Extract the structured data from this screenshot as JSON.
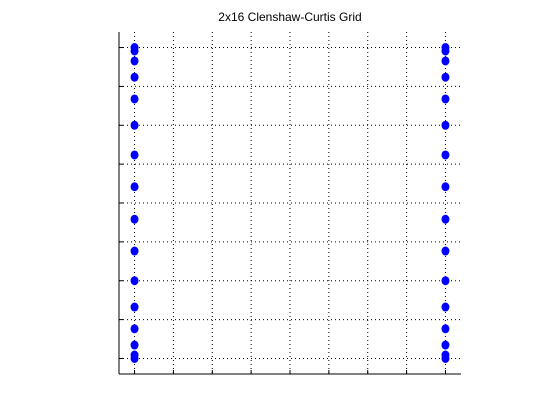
{
  "chart_data": {
    "type": "scatter",
    "title": "2x16 Clenshaw-Curtis Grid",
    "xlabel": "",
    "ylabel": "",
    "xlim": [
      -1.1,
      1.1
    ],
    "ylim": [
      -1.1,
      1.1
    ],
    "x_ticks": [
      -1,
      -0.75,
      -0.5,
      -0.25,
      0,
      0.25,
      0.5,
      0.75,
      1
    ],
    "y_ticks": [
      -1,
      -0.75,
      -0.5,
      -0.25,
      0,
      0.25,
      0.5,
      0.75,
      1
    ],
    "tick_labels_shown": false,
    "grid": true,
    "marker_color": "#0000ff",
    "series": [
      {
        "x": [
          -1,
          -1,
          -1,
          -1,
          -1,
          -1,
          -1,
          -1,
          -1,
          -1,
          -1,
          -1,
          -1,
          -1,
          -1,
          -1,
          1,
          1,
          1,
          1,
          1,
          1,
          1,
          1,
          1,
          1,
          1,
          1,
          1,
          1,
          1,
          1
        ],
        "y": [
          -1,
          -0.9781,
          -0.9135,
          -0.809,
          -0.6691,
          -0.5,
          -0.309,
          -0.1045,
          0.1045,
          0.309,
          0.5,
          0.6691,
          0.809,
          0.9135,
          0.9781,
          1,
          -1,
          -0.9781,
          -0.9135,
          -0.809,
          -0.6691,
          -0.5,
          -0.309,
          -0.1045,
          0.1045,
          0.309,
          0.5,
          0.6691,
          0.809,
          0.9135,
          0.9781,
          1
        ]
      }
    ]
  }
}
